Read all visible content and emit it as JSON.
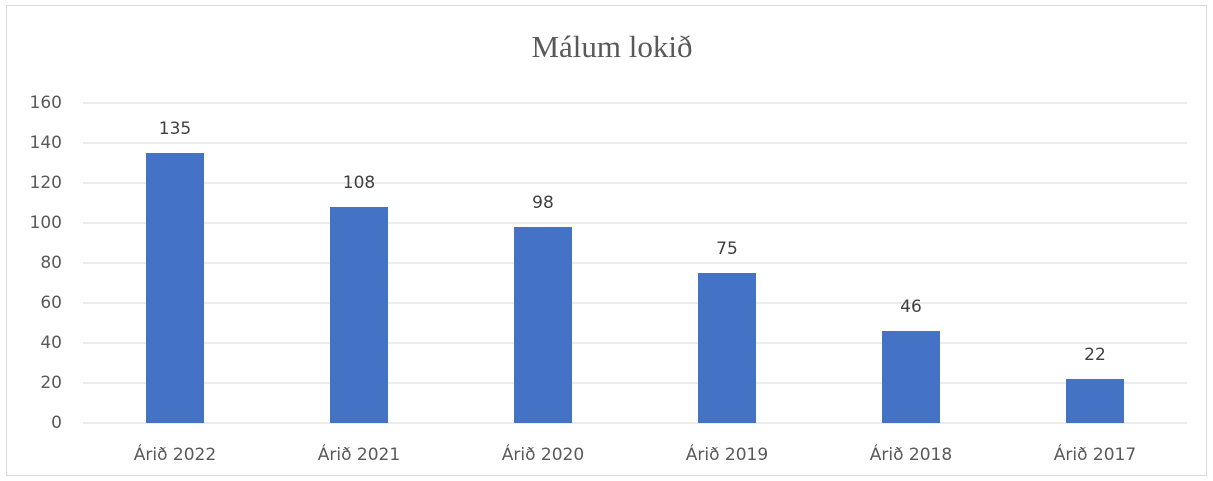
{
  "chart_data": {
    "type": "bar",
    "title": "Málum lokið",
    "categories": [
      "Árið 2022",
      "Árið 2021",
      "Árið 2020",
      "Árið 2019",
      "Árið 2018",
      "Árið 2017"
    ],
    "values": [
      135,
      108,
      98,
      75,
      46,
      22
    ],
    "color": "#4472c4",
    "ylim": [
      0,
      160
    ],
    "yticks": [
      0,
      20,
      40,
      60,
      80,
      100,
      120,
      140,
      160
    ],
    "grid": true
  }
}
